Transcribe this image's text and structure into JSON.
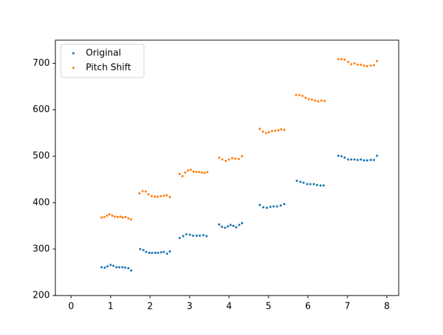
{
  "chart_data": {
    "type": "scatter",
    "xlim": [
      -0.4,
      8.3
    ],
    "ylim": [
      200,
      750
    ],
    "xticks": [
      0,
      1,
      2,
      3,
      4,
      5,
      6,
      7,
      8
    ],
    "yticks": [
      200,
      300,
      400,
      500,
      600,
      700
    ],
    "legend": "upper left",
    "series": [
      {
        "name": "Original",
        "color": "#1f77b4",
        "x": [
          0.77,
          0.85,
          0.92,
          1.0,
          1.07,
          1.15,
          1.22,
          1.3,
          1.37,
          1.45,
          1.52,
          1.75,
          1.83,
          1.9,
          1.98,
          2.05,
          2.13,
          2.2,
          2.28,
          2.35,
          2.43,
          2.5,
          2.75,
          2.84,
          2.92,
          3.01,
          3.09,
          3.18,
          3.26,
          3.35,
          3.43,
          3.75,
          3.82,
          3.9,
          3.97,
          4.04,
          4.11,
          4.18,
          4.26,
          4.33,
          4.78,
          4.87,
          4.96,
          5.05,
          5.13,
          5.22,
          5.31,
          5.4,
          5.72,
          5.81,
          5.89,
          5.98,
          6.06,
          6.15,
          6.23,
          6.32,
          6.4,
          6.77,
          6.85,
          6.93,
          7.02,
          7.1,
          7.18,
          7.26,
          7.34,
          7.42,
          7.5,
          7.59,
          7.67,
          7.75
        ],
        "values": [
          261,
          260,
          263,
          266,
          264,
          261,
          261,
          261,
          260,
          259,
          254,
          300,
          298,
          294,
          292,
          292,
          292,
          292,
          293,
          294,
          290,
          295,
          324,
          328,
          332,
          331,
          329,
          329,
          329,
          330,
          328,
          353,
          348,
          346,
          349,
          352,
          350,
          347,
          352,
          356,
          395,
          390,
          389,
          391,
          392,
          392,
          394,
          397,
          447,
          445,
          443,
          440,
          440,
          440,
          438,
          437,
          437,
          501,
          500,
          497,
          493,
          493,
          493,
          492,
          493,
          491,
          491,
          492,
          492,
          501
        ]
      },
      {
        "name": "Pitch Shift",
        "color": "#ff7f0e",
        "x": [
          0.77,
          0.84,
          0.91,
          0.97,
          1.04,
          1.11,
          1.18,
          1.25,
          1.31,
          1.38,
          1.45,
          1.52,
          1.73,
          1.81,
          1.89,
          1.96,
          2.04,
          2.12,
          2.19,
          2.27,
          2.35,
          2.42,
          2.5,
          2.75,
          2.82,
          2.89,
          2.96,
          3.03,
          3.1,
          3.17,
          3.24,
          3.31,
          3.38,
          3.45,
          3.75,
          3.83,
          3.92,
          4.0,
          4.08,
          4.16,
          4.25,
          4.33,
          4.78,
          4.86,
          4.94,
          5.01,
          5.09,
          5.17,
          5.25,
          5.32,
          5.4,
          5.7,
          5.78,
          5.86,
          5.94,
          6.02,
          6.1,
          6.18,
          6.26,
          6.34,
          6.42,
          6.77,
          6.85,
          6.93,
          7.02,
          7.1,
          7.18,
          7.26,
          7.34,
          7.42,
          7.5,
          7.59,
          7.67,
          7.75
        ],
        "values": [
          368,
          369,
          372,
          375,
          372,
          370,
          369,
          370,
          368,
          369,
          366,
          364,
          420,
          425,
          424,
          418,
          414,
          413,
          413,
          414,
          415,
          416,
          412,
          462,
          457,
          465,
          469,
          471,
          467,
          466,
          466,
          465,
          464,
          466,
          497,
          493,
          490,
          493,
          496,
          495,
          494,
          500,
          559,
          553,
          550,
          552,
          554,
          555,
          556,
          558,
          557,
          632,
          632,
          630,
          626,
          623,
          622,
          620,
          618,
          620,
          619,
          709,
          709,
          708,
          703,
          698,
          700,
          697,
          697,
          695,
          694,
          695,
          696,
          705
        ]
      }
    ]
  }
}
